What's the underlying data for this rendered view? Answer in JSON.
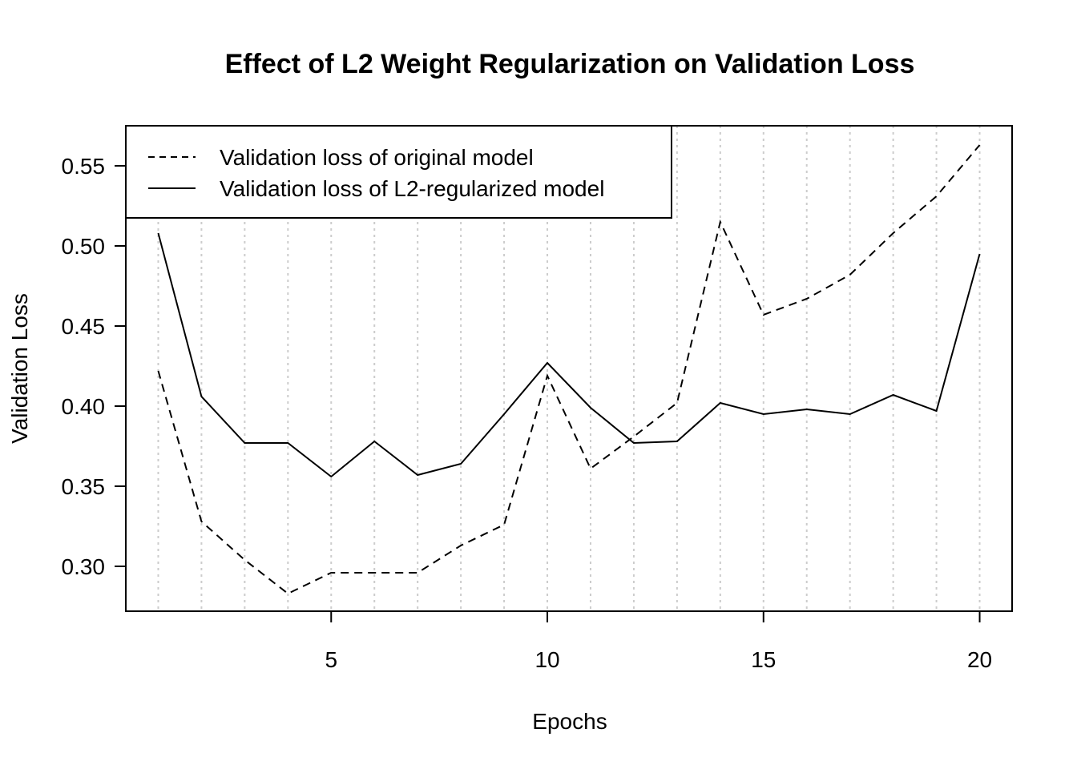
{
  "chart_data": {
    "type": "line",
    "title": "Effect of L2 Weight Regularization on Validation Loss",
    "xlabel": "Epochs",
    "ylabel": "Validation Loss",
    "x": [
      1,
      2,
      3,
      4,
      5,
      6,
      7,
      8,
      9,
      10,
      11,
      12,
      13,
      14,
      15,
      16,
      17,
      18,
      19,
      20
    ],
    "xticks": [
      5,
      10,
      15,
      20
    ],
    "xtick_labels": [
      "5",
      "10",
      "15",
      "20"
    ],
    "yticks": [
      0.3,
      0.35,
      0.4,
      0.45,
      0.5,
      0.55
    ],
    "ytick_labels": [
      "0.30",
      "0.35",
      "0.40",
      "0.45",
      "0.50",
      "0.55"
    ],
    "xlim": [
      0.25,
      20.75
    ],
    "ylim": [
      0.272,
      0.575
    ],
    "grid": "vertical dotted lines at each epoch",
    "legend_position": "top-left",
    "series": [
      {
        "name": "Validation loss of original model",
        "line_style": "dashed",
        "color": "#000000",
        "values": [
          0.422,
          0.328,
          0.304,
          0.283,
          0.296,
          0.296,
          0.296,
          0.313,
          0.326,
          0.419,
          0.361,
          0.381,
          0.402,
          0.515,
          0.457,
          0.467,
          0.482,
          0.508,
          0.531,
          0.563
        ]
      },
      {
        "name": "Validation loss of L2-regularized model",
        "line_style": "solid",
        "color": "#000000",
        "values": [
          0.508,
          0.406,
          0.377,
          0.377,
          0.356,
          0.378,
          0.357,
          0.364,
          0.395,
          0.427,
          0.399,
          0.377,
          0.378,
          0.402,
          0.395,
          0.398,
          0.395,
          0.407,
          0.397,
          0.495
        ]
      }
    ]
  }
}
